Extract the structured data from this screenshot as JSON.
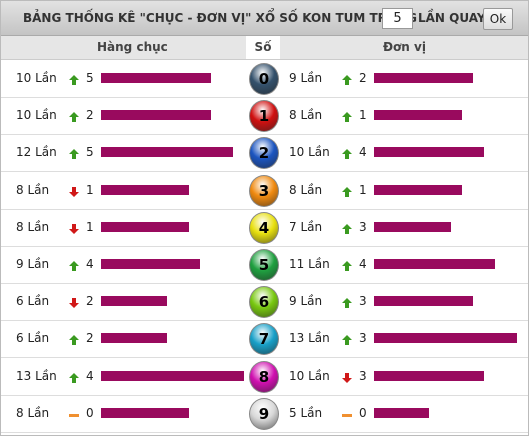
{
  "header": {
    "title": "BẢNG THỐNG KÊ \"CHỤC - ĐƠN VỊ\" XỔ SỐ KON TUM TRONG",
    "input": "5",
    "suffix": "LẦN QUAY",
    "button": "Ok"
  },
  "columns": {
    "tens": "Hàng chục",
    "digit": "Số",
    "units": "Đơn vị"
  },
  "unit": "Lần",
  "bar_color": "#990a5e",
  "rows": [
    {
      "digit": 0,
      "color": "#34516c",
      "tens": {
        "count": 10,
        "trend": "up",
        "change": 5
      },
      "units": {
        "count": 9,
        "trend": "up",
        "change": 2
      }
    },
    {
      "digit": 1,
      "color": "#d01010",
      "tens": {
        "count": 10,
        "trend": "up",
        "change": 2
      },
      "units": {
        "count": 8,
        "trend": "up",
        "change": 1
      }
    },
    {
      "digit": 2,
      "color": "#1c55c0",
      "tens": {
        "count": 12,
        "trend": "up",
        "change": 5
      },
      "units": {
        "count": 10,
        "trend": "up",
        "change": 4
      }
    },
    {
      "digit": 3,
      "color": "#f08a10",
      "tens": {
        "count": 8,
        "trend": "down",
        "change": 1
      },
      "units": {
        "count": 8,
        "trend": "up",
        "change": 1
      }
    },
    {
      "digit": 4,
      "color": "#e8e010",
      "tens": {
        "count": 8,
        "trend": "down",
        "change": 1
      },
      "units": {
        "count": 7,
        "trend": "up",
        "change": 3
      }
    },
    {
      "digit": 5,
      "color": "#20a040",
      "tens": {
        "count": 9,
        "trend": "up",
        "change": 4
      },
      "units": {
        "count": 11,
        "trend": "up",
        "change": 4
      }
    },
    {
      "digit": 6,
      "color": "#78c810",
      "tens": {
        "count": 6,
        "trend": "down",
        "change": 2
      },
      "units": {
        "count": 9,
        "trend": "up",
        "change": 3
      }
    },
    {
      "digit": 7,
      "color": "#18a0c8",
      "tens": {
        "count": 6,
        "trend": "up",
        "change": 2
      },
      "units": {
        "count": 13,
        "trend": "up",
        "change": 3
      }
    },
    {
      "digit": 8,
      "color": "#d010b0",
      "tens": {
        "count": 13,
        "trend": "up",
        "change": 4
      },
      "units": {
        "count": 10,
        "trend": "down",
        "change": 3
      }
    },
    {
      "digit": 9,
      "color": "#d8d8d8",
      "tens": {
        "count": 8,
        "trend": "flat",
        "change": 0
      },
      "units": {
        "count": 5,
        "trend": "flat",
        "change": 0
      }
    }
  ]
}
